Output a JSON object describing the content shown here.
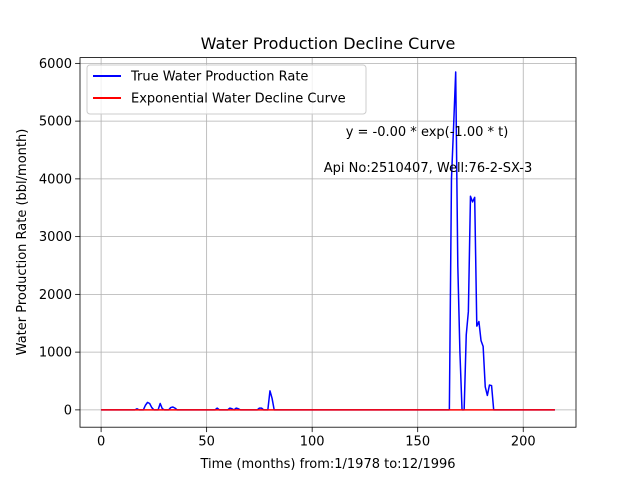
{
  "chart_data": {
    "type": "line",
    "title": "Water Production Decline Curve",
    "xlabel": "Time (months) from:1/1978 to:12/1996",
    "ylabel": "Water Production Rate (bbl/month)",
    "xlim": [
      -10,
      225
    ],
    "ylim": [
      -300,
      6100
    ],
    "xticks": [
      0,
      50,
      100,
      150,
      200
    ],
    "yticks": [
      0,
      1000,
      2000,
      3000,
      4000,
      5000,
      6000
    ],
    "grid": true,
    "legend_position": "top-left",
    "annotations": [
      "y = -0.00 * exp(-1.00 * t)",
      "Api No:2510407, Well:76-2-SX-3"
    ],
    "series": [
      {
        "name": "True Water Production Rate",
        "color": "#0000ff",
        "points": [
          [
            0,
            0
          ],
          [
            16,
            0
          ],
          [
            17,
            20
          ],
          [
            18,
            0
          ],
          [
            20,
            0
          ],
          [
            21,
            80
          ],
          [
            22,
            130
          ],
          [
            23,
            110
          ],
          [
            24,
            40
          ],
          [
            25,
            0
          ],
          [
            27,
            0
          ],
          [
            28,
            110
          ],
          [
            29,
            20
          ],
          [
            30,
            0
          ],
          [
            32,
            0
          ],
          [
            33,
            40
          ],
          [
            34,
            50
          ],
          [
            35,
            30
          ],
          [
            36,
            0
          ],
          [
            54,
            0
          ],
          [
            55,
            30
          ],
          [
            56,
            0
          ],
          [
            60,
            0
          ],
          [
            61,
            30
          ],
          [
            62,
            20
          ],
          [
            63,
            0
          ],
          [
            64,
            30
          ],
          [
            65,
            20
          ],
          [
            66,
            0
          ],
          [
            74,
            0
          ],
          [
            75,
            30
          ],
          [
            76,
            30
          ],
          [
            77,
            0
          ],
          [
            79,
            0
          ],
          [
            80,
            330
          ],
          [
            81,
            200
          ],
          [
            82,
            0
          ],
          [
            165,
            0
          ],
          [
            166,
            4000
          ],
          [
            167,
            4900
          ],
          [
            168,
            5850
          ],
          [
            169,
            2500
          ],
          [
            170,
            1000
          ],
          [
            171,
            0
          ],
          [
            172,
            0
          ],
          [
            173,
            1300
          ],
          [
            174,
            1700
          ],
          [
            175,
            3700
          ],
          [
            176,
            3600
          ],
          [
            177,
            3680
          ],
          [
            178,
            1450
          ],
          [
            179,
            1530
          ],
          [
            180,
            1200
          ],
          [
            181,
            1100
          ],
          [
            182,
            400
          ],
          [
            183,
            250
          ],
          [
            184,
            430
          ],
          [
            185,
            420
          ],
          [
            186,
            0
          ],
          [
            215,
            0
          ]
        ]
      },
      {
        "name": "Exponential Water Decline Curve",
        "color": "#ff0000",
        "points": [
          [
            0,
            0
          ],
          [
            215,
            0
          ]
        ]
      }
    ]
  }
}
